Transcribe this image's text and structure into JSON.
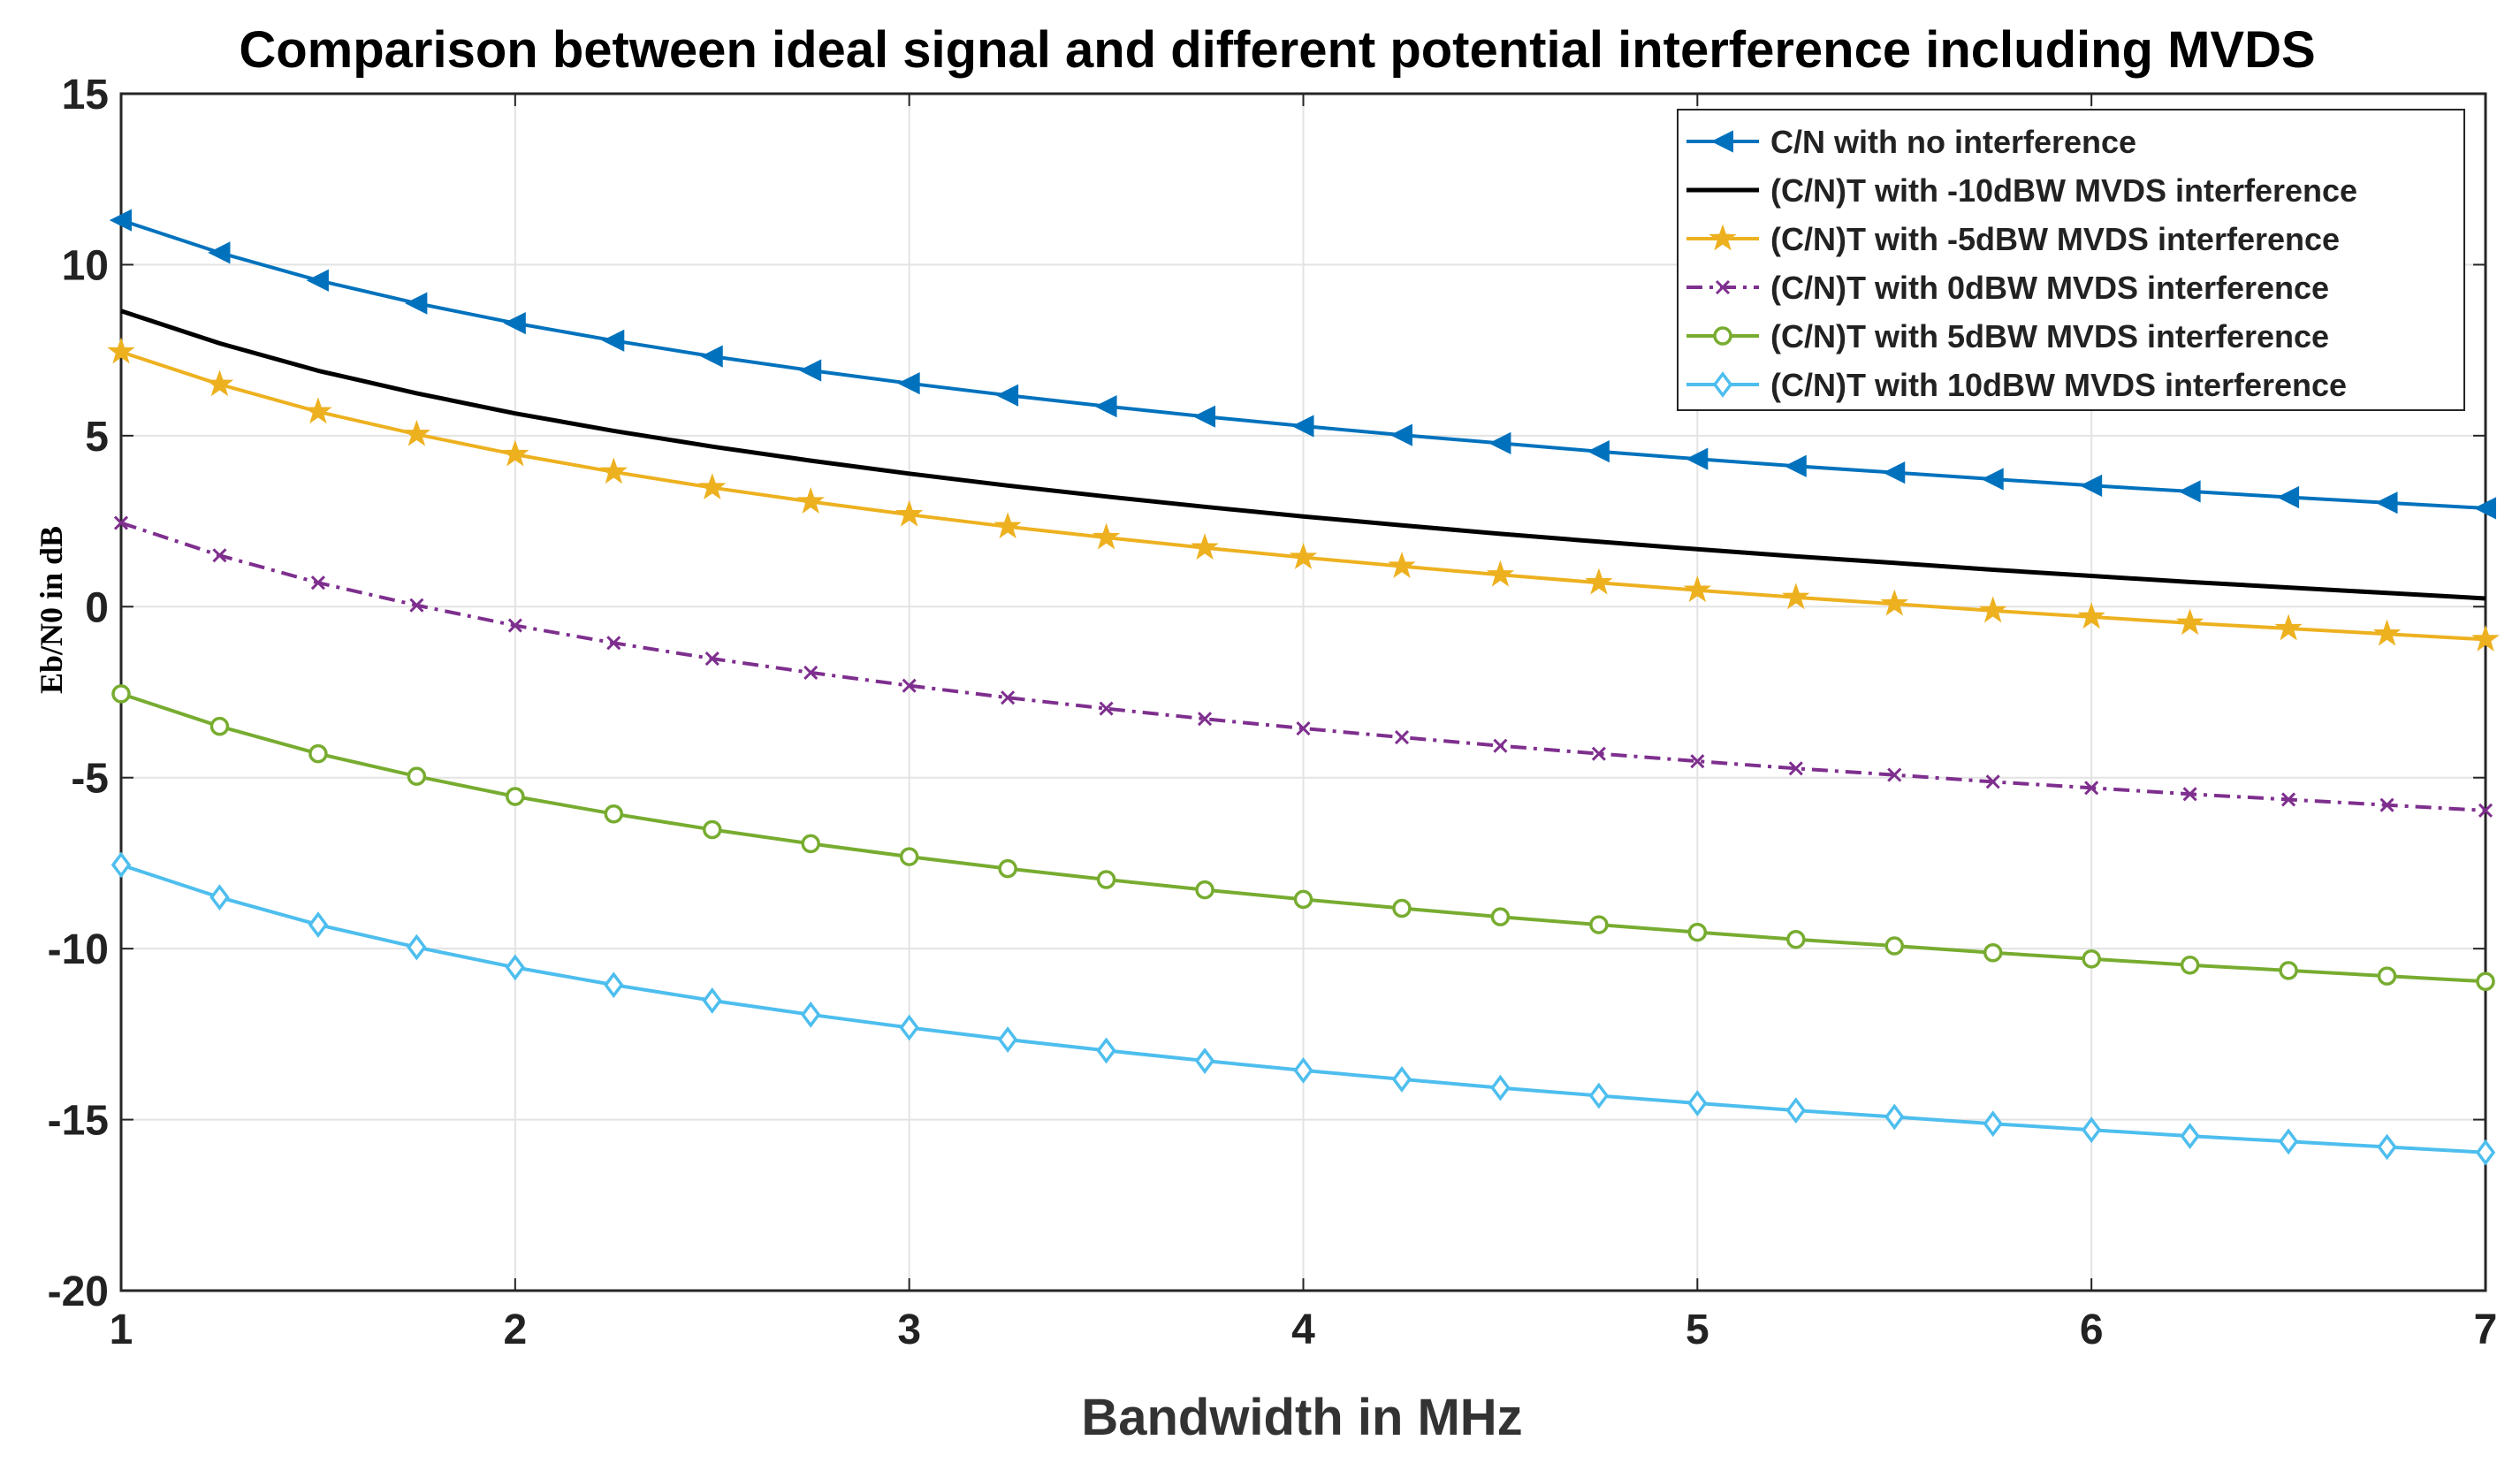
{
  "chart_data": {
    "type": "line",
    "title": "Comparison between ideal signal and different potential interference including MVDS",
    "xlabel": "Bandwidth in MHz",
    "ylabel": "Eb/N0 in dB",
    "xlim": [
      1,
      7
    ],
    "ylim": [
      -20,
      15
    ],
    "xticks": [
      1,
      2,
      3,
      4,
      5,
      6,
      7
    ],
    "yticks": [
      15,
      10,
      5,
      0,
      -5,
      -10,
      -15,
      -20
    ],
    "grid": true,
    "legend_position": "top-right",
    "x": [
      1,
      1.25,
      1.5,
      1.75,
      2,
      2.25,
      2.5,
      2.75,
      3,
      3.25,
      3.5,
      3.75,
      4,
      4.25,
      4.5,
      4.75,
      5,
      5.25,
      5.5,
      5.75,
      6,
      6.25,
      6.5,
      6.75,
      7
    ],
    "series": [
      {
        "name": "C/N with no interference",
        "color": "#0072BD",
        "marker": "triangle-left",
        "dash": "solid",
        "values": [
          11.3,
          10.35,
          9.54,
          8.87,
          8.29,
          7.78,
          7.32,
          6.91,
          6.53,
          6.18,
          5.86,
          5.56,
          5.28,
          5.02,
          4.78,
          4.54,
          4.32,
          4.11,
          3.92,
          3.73,
          3.54,
          3.37,
          3.2,
          3.04,
          2.88
        ]
      },
      {
        "name": "(C/N)T with -10dBW MVDS interference",
        "color": "#000000",
        "marker": "none",
        "dash": "solid",
        "values": [
          8.65,
          7.7,
          6.9,
          6.24,
          5.65,
          5.14,
          4.68,
          4.27,
          3.89,
          3.54,
          3.22,
          2.92,
          2.64,
          2.38,
          2.13,
          1.9,
          1.68,
          1.47,
          1.28,
          1.08,
          0.9,
          0.72,
          0.56,
          0.4,
          0.24
        ]
      },
      {
        "name": "(C/N)T with -5dBW MVDS interference",
        "color": "#EDB120",
        "marker": "star",
        "dash": "solid",
        "values": [
          7.45,
          6.5,
          5.7,
          5.04,
          4.45,
          3.94,
          3.48,
          3.07,
          2.69,
          2.34,
          2.02,
          1.72,
          1.44,
          1.18,
          0.93,
          0.7,
          0.48,
          0.27,
          0.08,
          -0.12,
          -0.3,
          -0.48,
          -0.64,
          -0.8,
          -0.96
        ]
      },
      {
        "name": "(C/N)T with 0dBW MVDS interference",
        "color": "#7E2F8E",
        "marker": "x",
        "dash": "dashdot",
        "values": [
          2.45,
          1.5,
          0.7,
          0.04,
          -0.55,
          -1.06,
          -1.52,
          -1.93,
          -2.31,
          -2.66,
          -2.98,
          -3.28,
          -3.56,
          -3.82,
          -4.07,
          -4.3,
          -4.52,
          -4.73,
          -4.92,
          -5.12,
          -5.3,
          -5.48,
          -5.64,
          -5.8,
          -5.96
        ]
      },
      {
        "name": "(C/N)T with 5dBW MVDS interference",
        "color": "#77AC30",
        "marker": "circle",
        "dash": "solid",
        "values": [
          -2.55,
          -3.5,
          -4.3,
          -4.96,
          -5.55,
          -6.06,
          -6.52,
          -6.93,
          -7.31,
          -7.66,
          -7.98,
          -8.28,
          -8.56,
          -8.82,
          -9.07,
          -9.3,
          -9.52,
          -9.73,
          -9.92,
          -10.12,
          -10.3,
          -10.48,
          -10.64,
          -10.8,
          -10.96
        ]
      },
      {
        "name": "(C/N)T with 10dBW MVDS interference",
        "color": "#4DBEEE",
        "marker": "diamond",
        "dash": "solid",
        "values": [
          -7.55,
          -8.5,
          -9.3,
          -9.96,
          -10.55,
          -11.06,
          -11.52,
          -11.93,
          -12.31,
          -12.66,
          -12.98,
          -13.28,
          -13.56,
          -13.82,
          -14.07,
          -14.3,
          -14.52,
          -14.73,
          -14.92,
          -15.12,
          -15.3,
          -15.48,
          -15.64,
          -15.8,
          -15.96
        ]
      }
    ]
  }
}
